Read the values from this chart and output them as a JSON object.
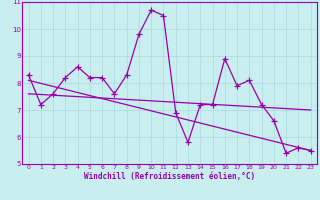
{
  "xlabel": "Windchill (Refroidissement éolien,°C)",
  "background_color": "#c8eef0",
  "grid_color": "#b0dde0",
  "line_color": "#9900aa",
  "xlim": [
    -0.5,
    23.5
  ],
  "ylim": [
    5,
    11
  ],
  "yticks": [
    5,
    6,
    7,
    8,
    9,
    10,
    11
  ],
  "xticks": [
    0,
    1,
    2,
    3,
    4,
    5,
    6,
    7,
    8,
    9,
    10,
    11,
    12,
    13,
    14,
    15,
    16,
    17,
    18,
    19,
    20,
    21,
    22,
    23
  ],
  "line1_x": [
    0,
    1,
    2,
    3,
    4,
    5,
    6,
    7,
    8,
    9,
    10,
    11,
    12,
    13,
    14,
    15,
    16,
    17,
    18,
    19,
    20,
    21,
    22,
    23
  ],
  "line1_y": [
    8.3,
    7.2,
    7.6,
    8.2,
    8.6,
    8.2,
    8.2,
    7.6,
    8.3,
    9.8,
    10.7,
    10.5,
    6.9,
    5.8,
    7.2,
    7.2,
    8.9,
    7.9,
    8.1,
    7.2,
    6.6,
    5.4,
    5.6,
    5.5
  ],
  "line2_x": [
    0,
    23
  ],
  "line2_y": [
    8.1,
    5.5
  ],
  "line3_x": [
    0,
    23
  ],
  "line3_y": [
    7.6,
    7.0
  ]
}
